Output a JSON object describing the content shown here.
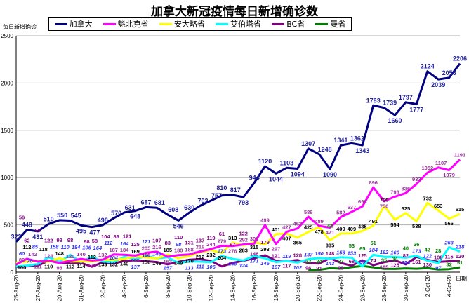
{
  "chart_data": {
    "type": "line",
    "title": "加拿大新冠疫情每日新增确诊数",
    "ylabel": "每日新增确诊",
    "xlabel": "日期",
    "ylim": [
      0,
      2500
    ],
    "yticks": [
      0,
      500,
      1000,
      1500,
      2000,
      2500
    ],
    "grid": true,
    "legend_position": "top",
    "x": [
      "25-Aug-20",
      "26-Aug-20",
      "27-Aug-20",
      "28-Aug-20",
      "29-Aug-20",
      "30-Aug-20",
      "31-Aug-20",
      "1-Sep-20",
      "2-Sep-20",
      "3-Sep-20",
      "4-Sep-20",
      "5-Sep-20",
      "6-Sep-20",
      "7-Sep-20",
      "8-Sep-20",
      "9-Sep-20",
      "10-Sep-20",
      "11-Sep-20",
      "12-Sep-20",
      "13-Sep-20",
      "14-Sep-20",
      "15-Sep-20",
      "16-Sep-20",
      "17-Sep-20",
      "18-Sep-20",
      "19-Sep-20",
      "20-Sep-20",
      "21-Sep-20",
      "22-Sep-20",
      "23-Sep-20",
      "24-Sep-20",
      "25-Sep-20",
      "26-Sep-20",
      "27-Sep-20",
      "28-Sep-20",
      "29-Sep-20",
      "30-Sep-20",
      "1-Oct-20",
      "2-Oct-20",
      "3-Oct-20",
      "4-Oct-20",
      "5-Oct-20"
    ],
    "xtick_labels": [
      "25-Aug-20",
      "27-Aug-20",
      "29-Aug-20",
      "31-Aug-20",
      "2-Sep-20",
      "4-Sep-20",
      "6-Sep-20",
      "8-Sep-20",
      "10-Sep-20",
      "12-Sep-20",
      "14-Sep-20",
      "16-Sep-20",
      "18-Sep-20",
      "20-Sep-20",
      "22-Sep-20",
      "24-Sep-20",
      "26-Sep-20",
      "28-Sep-20",
      "30-Sep-20",
      "2-Oct-20",
      "4-Oct-20"
    ],
    "series": [
      {
        "name": "加拿大",
        "color": "#000080",
        "label_color": "#1f1f9f",
        "values": [
          322,
          448,
          431,
          510,
          550,
          545,
          495,
          477,
          498,
          570,
          631,
          648,
          687,
          681,
          608,
          546,
          630,
          702,
          757,
          810,
          817,
          793,
          944,
          1120,
          1044,
          1103,
          1094,
          1307,
          1248,
          1090,
          1341,
          1362,
          1343,
          1763,
          1739,
          1660,
          1797,
          1777,
          2124,
          2039,
          2056,
          2206
        ]
      },
      {
        "name": "魁北克省",
        "color": "#ff00ff",
        "label_color": "#993399",
        "values": [
          80,
          142,
          111,
          124,
          98,
          120,
          140,
          123,
          132,
          187,
          184,
          175,
          205,
          216,
          163,
          180,
          188,
          219,
          244,
          279,
          276,
          292,
          303,
          499,
          297,
          427,
          462,
          586,
          489,
          471,
          582,
          637,
          696,
          896,
          750,
          798,
          836,
          933,
          1052,
          1107,
          1079,
          1191
        ]
      },
      {
        "name": "安大略省",
        "color": "#ffff00",
        "label_color": "#000000",
        "values": [
          100,
          112,
          118,
          110,
          148,
          112,
          114,
          112,
          133,
          132,
          140,
          169,
          156,
          146,
          185,
          149,
          170,
          212,
          232,
          204,
          313,
          283,
          315,
          293,
          401,
          407,
          365,
          425,
          478,
          335,
          409,
          409,
          435,
          491,
          700,
          554,
          625,
          538,
          732,
          653,
          566,
          615
        ]
      },
      {
        "name": "艾伯塔省",
        "color": "#00ffff",
        "label_color": "#3333ff",
        "values": [
          60,
          70,
          85,
          158,
          110,
          184,
          106,
          164,
          112,
          104,
          164,
          137,
          171,
          146,
          157,
          98,
          113,
          111,
          106,
          173,
          140,
          124,
          171,
          146,
          107,
          119,
          102,
          137,
          150,
          143,
          158,
          153,
          60,
          184,
          162,
          160,
          153,
          173,
          122,
          97,
          263,
          218
        ]
      },
      {
        "name": "BC省",
        "color": "#800080",
        "label_color": "#800080",
        "values": [
          56,
          62,
          68,
          122,
          98,
          98,
          98,
          58,
          104,
          89,
          121,
          125,
          116,
          107,
          83,
          110,
          131,
          137,
          119,
          61,
          97,
          122,
          146,
          179,
          121,
          117,
          128,
          96,
          91,
          148,
          98,
          68,
          125,
          74,
          105,
          125,
          82,
          161,
          130,
          108,
          115,
          120
        ]
      },
      {
        "name": "曼省",
        "color": "#008000",
        "label_color": "#008000",
        "values": [
          null,
          null,
          null,
          null,
          null,
          null,
          null,
          null,
          null,
          null,
          null,
          null,
          null,
          null,
          null,
          null,
          null,
          null,
          null,
          null,
          null,
          null,
          null,
          null,
          null,
          null,
          null,
          22,
          24,
          42,
          37,
          53,
          65,
          51,
          35,
          34,
          40,
          36,
          42,
          28,
          32,
          51
        ]
      }
    ]
  }
}
